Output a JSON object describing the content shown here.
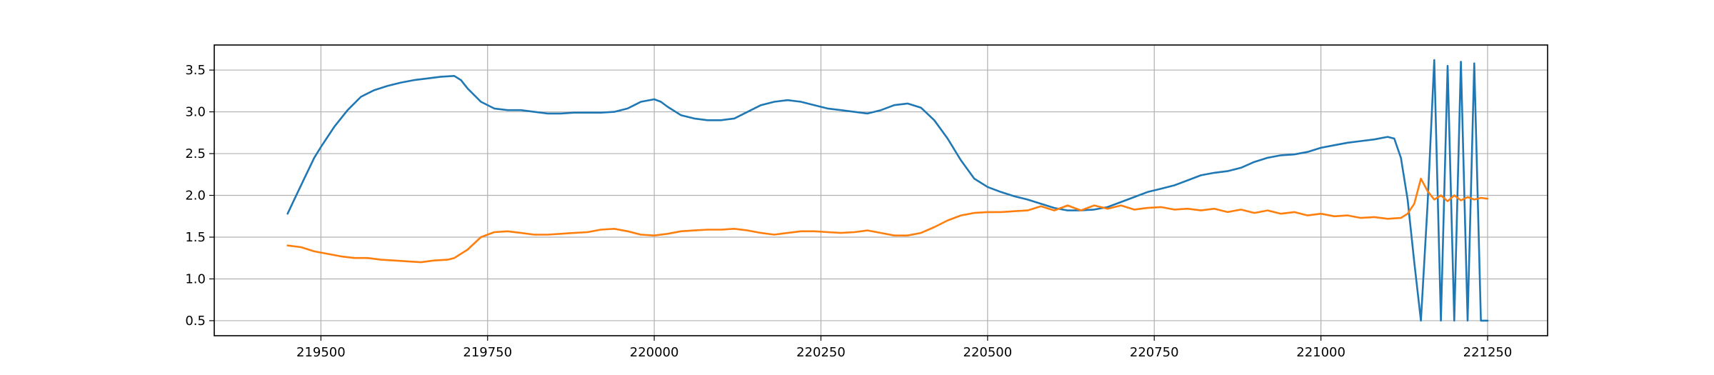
{
  "chart_data": {
    "type": "line",
    "title": "",
    "xlabel": "",
    "ylabel": "",
    "xlim": [
      219340,
      221340
    ],
    "ylim": [
      0.32,
      3.8
    ],
    "grid": true,
    "legend": "none",
    "xticks": [
      219500,
      219750,
      220000,
      220250,
      220500,
      220750,
      221000,
      221250
    ],
    "yticks": [
      0.5,
      1.0,
      1.5,
      2.0,
      2.5,
      3.0,
      3.5
    ],
    "xtick_labels": [
      "219500",
      "219750",
      "220000",
      "220250",
      "220500",
      "220750",
      "221000",
      "221250"
    ],
    "ytick_labels": [
      "0.5",
      "1.0",
      "1.5",
      "2.0",
      "2.5",
      "3.0",
      "3.5"
    ],
    "series": [
      {
        "color": "#1f77b4",
        "x": [
          219450,
          219460,
          219475,
          219490,
          219500,
          219520,
          219540,
          219560,
          219580,
          219600,
          219620,
          219640,
          219660,
          219680,
          219700,
          219710,
          219720,
          219740,
          219760,
          219780,
          219800,
          219820,
          219840,
          219860,
          219880,
          219900,
          219920,
          219940,
          219960,
          219980,
          220000,
          220010,
          220020,
          220040,
          220060,
          220080,
          220100,
          220120,
          220140,
          220160,
          220180,
          220200,
          220220,
          220240,
          220260,
          220280,
          220300,
          220320,
          220340,
          220360,
          220380,
          220400,
          220420,
          220440,
          220460,
          220480,
          220500,
          220520,
          220540,
          220560,
          220580,
          220600,
          220620,
          220640,
          220660,
          220680,
          220700,
          220720,
          220740,
          220760,
          220780,
          220800,
          220820,
          220840,
          220860,
          220880,
          220900,
          220920,
          220940,
          220960,
          220980,
          221000,
          221020,
          221040,
          221060,
          221080,
          221100,
          221110,
          221120,
          221130,
          221140,
          221150,
          221160,
          221170,
          221180,
          221190,
          221200,
          221210,
          221220,
          221230,
          221240,
          221250
        ],
        "y": [
          1.78,
          1.95,
          2.2,
          2.45,
          2.58,
          2.82,
          3.02,
          3.18,
          3.26,
          3.31,
          3.35,
          3.38,
          3.4,
          3.42,
          3.43,
          3.38,
          3.28,
          3.12,
          3.04,
          3.02,
          3.02,
          3.0,
          2.98,
          2.98,
          2.99,
          2.99,
          2.99,
          3.0,
          3.04,
          3.12,
          3.15,
          3.12,
          3.06,
          2.96,
          2.92,
          2.9,
          2.9,
          2.92,
          3.0,
          3.08,
          3.12,
          3.14,
          3.12,
          3.08,
          3.04,
          3.02,
          3.0,
          2.98,
          3.02,
          3.08,
          3.1,
          3.05,
          2.9,
          2.68,
          2.42,
          2.2,
          2.1,
          2.04,
          1.99,
          1.95,
          1.9,
          1.85,
          1.82,
          1.82,
          1.83,
          1.86,
          1.92,
          1.98,
          2.04,
          2.08,
          2.12,
          2.18,
          2.24,
          2.27,
          2.29,
          2.33,
          2.4,
          2.45,
          2.48,
          2.49,
          2.52,
          2.57,
          2.6,
          2.63,
          2.65,
          2.67,
          2.7,
          2.68,
          2.45,
          1.95,
          1.2,
          0.5,
          1.9,
          3.62,
          0.5,
          3.55,
          0.5,
          3.6,
          0.5,
          3.58,
          0.5,
          0.5
        ]
      },
      {
        "color": "#ff7f0e",
        "x": [
          219450,
          219470,
          219490,
          219510,
          219530,
          219550,
          219570,
          219590,
          219610,
          219630,
          219650,
          219670,
          219690,
          219700,
          219720,
          219740,
          219760,
          219780,
          219800,
          219820,
          219840,
          219860,
          219880,
          219900,
          219920,
          219940,
          219960,
          219980,
          220000,
          220020,
          220040,
          220060,
          220080,
          220100,
          220120,
          220140,
          220160,
          220180,
          220200,
          220220,
          220240,
          220260,
          220280,
          220300,
          220320,
          220340,
          220360,
          220380,
          220400,
          220420,
          220440,
          220460,
          220480,
          220500,
          220520,
          220540,
          220560,
          220580,
          220600,
          220620,
          220640,
          220660,
          220680,
          220700,
          220720,
          220740,
          220760,
          220780,
          220800,
          220820,
          220840,
          220860,
          220880,
          220900,
          220920,
          220940,
          220960,
          220980,
          221000,
          221020,
          221040,
          221060,
          221080,
          221100,
          221120,
          221130,
          221140,
          221150,
          221160,
          221170,
          221180,
          221190,
          221200,
          221210,
          221220,
          221230,
          221240,
          221250
        ],
        "y": [
          1.4,
          1.38,
          1.33,
          1.3,
          1.27,
          1.25,
          1.25,
          1.23,
          1.22,
          1.21,
          1.2,
          1.22,
          1.23,
          1.25,
          1.35,
          1.5,
          1.56,
          1.57,
          1.55,
          1.53,
          1.53,
          1.54,
          1.55,
          1.56,
          1.59,
          1.6,
          1.57,
          1.53,
          1.52,
          1.54,
          1.57,
          1.58,
          1.59,
          1.59,
          1.6,
          1.58,
          1.55,
          1.53,
          1.55,
          1.57,
          1.57,
          1.56,
          1.55,
          1.56,
          1.58,
          1.55,
          1.52,
          1.52,
          1.55,
          1.62,
          1.7,
          1.76,
          1.79,
          1.8,
          1.8,
          1.81,
          1.82,
          1.87,
          1.82,
          1.88,
          1.82,
          1.88,
          1.84,
          1.88,
          1.83,
          1.85,
          1.86,
          1.83,
          1.84,
          1.82,
          1.84,
          1.8,
          1.83,
          1.79,
          1.82,
          1.78,
          1.8,
          1.76,
          1.78,
          1.75,
          1.76,
          1.73,
          1.74,
          1.72,
          1.73,
          1.78,
          1.9,
          2.2,
          2.05,
          1.95,
          2.0,
          1.93,
          2.0,
          1.94,
          1.98,
          1.95,
          1.97,
          1.96
        ]
      }
    ]
  }
}
